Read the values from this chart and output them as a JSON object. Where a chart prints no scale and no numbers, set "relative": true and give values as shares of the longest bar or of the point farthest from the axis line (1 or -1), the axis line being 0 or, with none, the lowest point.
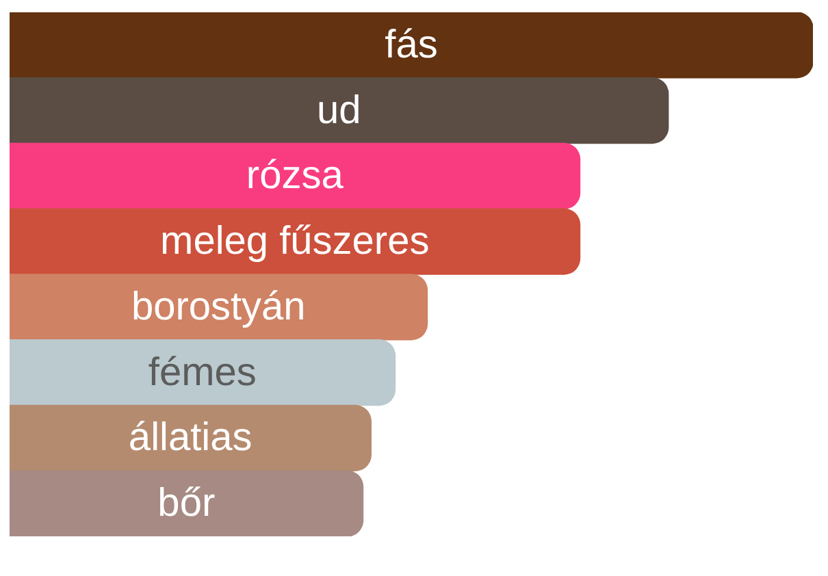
{
  "chart_data": {
    "type": "bar",
    "orientation": "horizontal",
    "relative": true,
    "categories": [
      "fás",
      "ud",
      "rózsa",
      "meleg fűszeres",
      "borostyán",
      "fémes",
      "állatias",
      "bőr"
    ],
    "values": [
      1,
      0.82,
      0.71,
      0.71,
      0.52,
      0.48,
      0.45,
      0.44
    ],
    "colors": [
      "#623211",
      "#5b4d44",
      "#f93c80",
      "#cc503b",
      "#cf8264",
      "#bacacf",
      "#b58b6f",
      "#a78a83"
    ]
  }
}
